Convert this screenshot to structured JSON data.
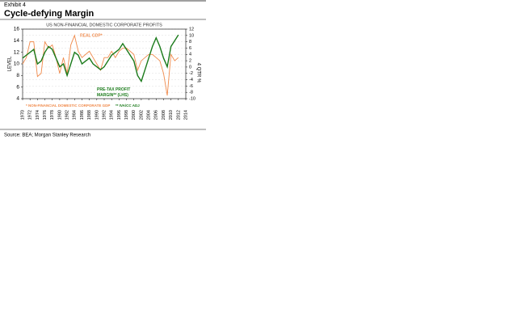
{
  "header": {
    "exhibit": "Exhibit 4",
    "title": "Cycle-defying Margin"
  },
  "chart_data": {
    "type": "line",
    "title": "US NON-FINANCIAL DOMESTIC CORPORATE PROFITS",
    "ylabel": "LEVEL",
    "y2label": "4 QTR %",
    "x": [
      1970,
      1971,
      1972,
      1973,
      1974,
      1975,
      1976,
      1977,
      1978,
      1979,
      1980,
      1981,
      1982,
      1983,
      1984,
      1985,
      1986,
      1987,
      1988,
      1989,
      1990,
      1991,
      1992,
      1993,
      1994,
      1995,
      1996,
      1997,
      1998,
      1999,
      2000,
      2001,
      2002,
      2003,
      2004,
      2005,
      2006,
      2007,
      2008,
      2009,
      2010,
      2011,
      2012
    ],
    "series": [
      {
        "name": "PRE-TAX PROFIT MARGIN** (LHS)",
        "color": "#1a7a1a",
        "axis": "y",
        "values": [
          11,
          11.5,
          12,
          12.5,
          10,
          10.5,
          12,
          13,
          12.5,
          11,
          9.5,
          10,
          8,
          10,
          12,
          11.5,
          10,
          10.5,
          11,
          10,
          9.5,
          9,
          9.5,
          10.5,
          11.5,
          12,
          12.5,
          13.5,
          12.5,
          11.5,
          10.5,
          8,
          7,
          9,
          11,
          13,
          14.5,
          13,
          11,
          9.5,
          13,
          14,
          15
        ]
      },
      {
        "name": "REAL GDP*",
        "color": "#f08a4b",
        "axis": "y2",
        "values": [
          1,
          3,
          8,
          8,
          -3,
          -2,
          8,
          6,
          7,
          3,
          -2,
          3,
          -2,
          7,
          10,
          5,
          3,
          4,
          5,
          3,
          1,
          -1,
          3,
          3,
          5,
          3,
          5,
          6,
          6,
          5,
          4,
          -1,
          2,
          3,
          4,
          4,
          3,
          2,
          -2,
          -9,
          4,
          2,
          3
        ]
      }
    ],
    "xlim": [
      1970,
      2014
    ],
    "xticks": [
      1970,
      1972,
      1974,
      1976,
      1978,
      1980,
      1982,
      1984,
      1986,
      1988,
      1990,
      1992,
      1994,
      1996,
      1998,
      2000,
      2002,
      2004,
      2006,
      2008,
      2010,
      2012,
      2014
    ],
    "ylim": [
      4,
      16
    ],
    "yticks": [
      4,
      6,
      8,
      10,
      12,
      14,
      16
    ],
    "y2lim": [
      -10,
      12
    ],
    "y2ticks": [
      -10,
      -8,
      -6,
      -4,
      -2,
      0,
      2,
      4,
      6,
      8,
      10,
      12
    ],
    "grid": true,
    "footnotes": [
      "* NON-FINANCIAL DOMESTIC CORPORATE GDP",
      "** IVA/CC ADJ"
    ]
  },
  "source": "Source: BEA; Morgan Stanley Research"
}
